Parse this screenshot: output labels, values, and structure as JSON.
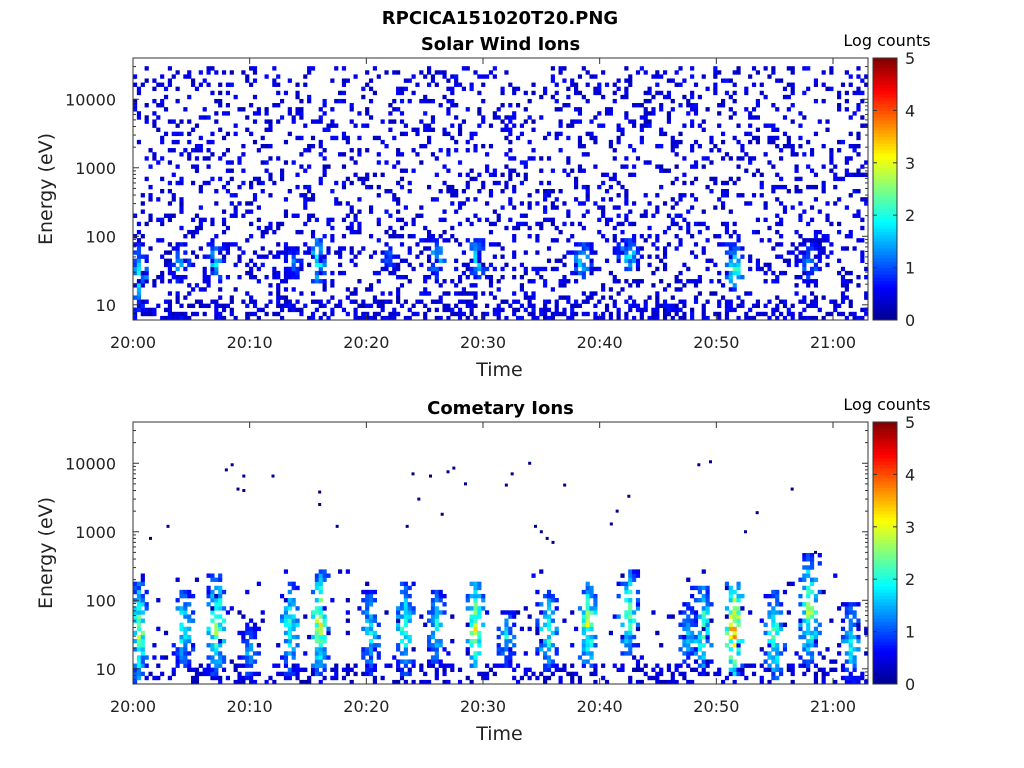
{
  "figure_title": "RPCICA151020T20.PNG",
  "colormap_stops": [
    "#00008f",
    "#0000ff",
    "#0080ff",
    "#00ffff",
    "#80ff80",
    "#ffff00",
    "#ff8000",
    "#ff0000",
    "#800000"
  ],
  "chart_data": [
    {
      "type": "heatmap",
      "title": "Solar Wind Ions",
      "xlabel": "Time",
      "ylabel": "Energy (eV)",
      "x_ticks": [
        "20:00",
        "20:10",
        "20:20",
        "20:30",
        "20:40",
        "20:50",
        "21:00"
      ],
      "y_ticks": [
        "10",
        "100",
        "1000",
        "10000"
      ],
      "y_scale": "log",
      "ylim": [
        6,
        40000
      ],
      "xlim_minutes": [
        0,
        63
      ],
      "colorbar": {
        "label": "Log counts",
        "range": [
          0,
          5
        ],
        "ticks": [
          "0",
          "1",
          "2",
          "3",
          "4",
          "5"
        ]
      },
      "background_noise": {
        "energy_range": [
          6,
          30000
        ],
        "level": 0.2
      },
      "bursts": [
        {
          "t": 0.5,
          "e_low": 8,
          "e_high": 80,
          "peak": 1.8
        },
        {
          "t": 4.0,
          "e_low": 20,
          "e_high": 80,
          "peak": 1.5
        },
        {
          "t": 7.0,
          "e_low": 20,
          "e_high": 80,
          "peak": 1.8
        },
        {
          "t": 13.8,
          "e_low": 25,
          "e_high": 70,
          "peak": 1.4
        },
        {
          "t": 15.8,
          "e_low": 20,
          "e_high": 100,
          "peak": 2.2
        },
        {
          "t": 22.0,
          "e_low": 30,
          "e_high": 80,
          "peak": 1.2
        },
        {
          "t": 26.0,
          "e_low": 25,
          "e_high": 100,
          "peak": 1.8
        },
        {
          "t": 29.5,
          "e_low": 25,
          "e_high": 100,
          "peak": 2.0
        },
        {
          "t": 38.5,
          "e_low": 25,
          "e_high": 80,
          "peak": 1.9
        },
        {
          "t": 42.5,
          "e_low": 30,
          "e_high": 100,
          "peak": 1.9
        },
        {
          "t": 51.5,
          "e_low": 15,
          "e_high": 80,
          "peak": 2.3
        },
        {
          "t": 58.0,
          "e_low": 20,
          "e_high": 80,
          "peak": 1.5
        }
      ]
    },
    {
      "type": "heatmap",
      "title": "Cometary Ions",
      "xlabel": "Time",
      "ylabel": "Energy (eV)",
      "x_ticks": [
        "20:00",
        "20:10",
        "20:20",
        "20:30",
        "20:40",
        "20:50",
        "21:00"
      ],
      "y_ticks": [
        "10",
        "100",
        "1000",
        "10000"
      ],
      "y_scale": "log",
      "ylim": [
        6,
        40000
      ],
      "xlim_minutes": [
        0,
        63
      ],
      "colorbar": {
        "label": "Log counts",
        "range": [
          0,
          5
        ],
        "ticks": [
          "0",
          "1",
          "2",
          "3",
          "4",
          "5"
        ]
      },
      "background_noise": {
        "energy_range": [
          6,
          300
        ],
        "level": 0.15
      },
      "bursts": [
        {
          "t": 0.5,
          "e_low": 6,
          "e_high": 200,
          "peak": 2.6
        },
        {
          "t": 4.3,
          "e_low": 10,
          "e_high": 150,
          "peak": 2.2
        },
        {
          "t": 7.2,
          "e_low": 8,
          "e_high": 250,
          "peak": 2.7
        },
        {
          "t": 10.0,
          "e_low": 6,
          "e_high": 50,
          "peak": 1.6
        },
        {
          "t": 13.5,
          "e_low": 8,
          "e_high": 200,
          "peak": 2.3
        },
        {
          "t": 16.0,
          "e_low": 8,
          "e_high": 300,
          "peak": 3.0
        },
        {
          "t": 20.3,
          "e_low": 8,
          "e_high": 150,
          "peak": 2.0
        },
        {
          "t": 23.3,
          "e_low": 8,
          "e_high": 200,
          "peak": 2.3
        },
        {
          "t": 26.0,
          "e_low": 10,
          "e_high": 150,
          "peak": 2.0
        },
        {
          "t": 29.3,
          "e_low": 10,
          "e_high": 200,
          "peak": 3.1
        },
        {
          "t": 32.0,
          "e_low": 10,
          "e_high": 80,
          "peak": 1.8
        },
        {
          "t": 35.5,
          "e_low": 8,
          "e_high": 150,
          "peak": 2.4
        },
        {
          "t": 39.0,
          "e_low": 10,
          "e_high": 200,
          "peak": 2.8
        },
        {
          "t": 42.5,
          "e_low": 15,
          "e_high": 300,
          "peak": 2.6
        },
        {
          "t": 47.5,
          "e_low": 10,
          "e_high": 100,
          "peak": 1.8
        },
        {
          "t": 48.8,
          "e_low": 8,
          "e_high": 200,
          "peak": 2.5
        },
        {
          "t": 51.5,
          "e_low": 8,
          "e_high": 200,
          "peak": 3.8
        },
        {
          "t": 55.0,
          "e_low": 6,
          "e_high": 150,
          "peak": 2.4
        },
        {
          "t": 58.0,
          "e_low": 10,
          "e_high": 500,
          "peak": 2.8
        },
        {
          "t": 61.5,
          "e_low": 6,
          "e_high": 100,
          "peak": 2.0
        }
      ],
      "high_energy_dots": [
        {
          "t": 8.0,
          "e": 8000
        },
        {
          "t": 8.5,
          "e": 9500
        },
        {
          "t": 9.0,
          "e": 4200
        },
        {
          "t": 9.5,
          "e": 6500
        },
        {
          "t": 9.5,
          "e": 4000
        },
        {
          "t": 12.0,
          "e": 6500
        },
        {
          "t": 3.0,
          "e": 1200
        },
        {
          "t": 1.5,
          "e": 800
        },
        {
          "t": 16.0,
          "e": 2500
        },
        {
          "t": 16.0,
          "e": 3800
        },
        {
          "t": 17.5,
          "e": 1200
        },
        {
          "t": 23.5,
          "e": 1200
        },
        {
          "t": 24.0,
          "e": 7000
        },
        {
          "t": 24.5,
          "e": 3000
        },
        {
          "t": 25.5,
          "e": 6500
        },
        {
          "t": 26.5,
          "e": 1800
        },
        {
          "t": 27.0,
          "e": 7500
        },
        {
          "t": 27.5,
          "e": 8500
        },
        {
          "t": 28.5,
          "e": 5000
        },
        {
          "t": 32.0,
          "e": 4800
        },
        {
          "t": 32.5,
          "e": 7000
        },
        {
          "t": 34.0,
          "e": 10000
        },
        {
          "t": 34.5,
          "e": 1200
        },
        {
          "t": 35.0,
          "e": 1000
        },
        {
          "t": 35.5,
          "e": 800
        },
        {
          "t": 36.0,
          "e": 700
        },
        {
          "t": 37.0,
          "e": 4800
        },
        {
          "t": 41.5,
          "e": 2000
        },
        {
          "t": 42.5,
          "e": 3300
        },
        {
          "t": 41.0,
          "e": 1300
        },
        {
          "t": 48.5,
          "e": 9500
        },
        {
          "t": 49.5,
          "e": 10500
        },
        {
          "t": 52.5,
          "e": 1000
        },
        {
          "t": 53.5,
          "e": 1900
        },
        {
          "t": 56.5,
          "e": 4200
        },
        {
          "t": 58.5,
          "e": 500
        }
      ]
    }
  ]
}
